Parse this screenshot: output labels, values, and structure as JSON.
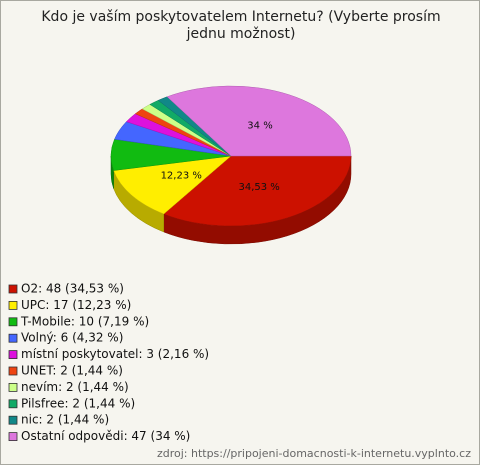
{
  "chart_data": {
    "type": "pie",
    "title": "Kdo je vaším poskytovatelem Internetu? (Vyberte prosím jednu možnost)",
    "categories": [
      "O2: 48 (34,53 %)",
      "UPC: 17 (12,23 %)",
      "T-Mobile: 10 (7,19 %)",
      "Volný: 6 (4,32 %)",
      "místní poskytovatel: 3 (2,16 %)",
      "UNET: 2 (1,44 %)",
      "nevím: 2 (1,44 %)",
      "Pilsfree: 2 (1,44 %)",
      "nic: 2 (1,44 %)",
      "Ostatní odpovědi: 47 (34 %)"
    ],
    "values": [
      34.53,
      12.23,
      7.19,
      4.32,
      2.16,
      1.44,
      1.44,
      1.44,
      1.44,
      34
    ],
    "value_labels": [
      "34,53 %",
      "12,23 %",
      null,
      null,
      null,
      null,
      null,
      null,
      null,
      "34 %"
    ],
    "colors": [
      "#cc1100",
      "#ffee00",
      "#11bb11",
      "#4466ff",
      "#dd11dd",
      "#ee4411",
      "#ccff88",
      "#11aa66",
      "#118888",
      "#dd77dd"
    ],
    "source": "zdroj: https://pripojeni-domacnosti-k-internetu.vyplnto.cz"
  }
}
